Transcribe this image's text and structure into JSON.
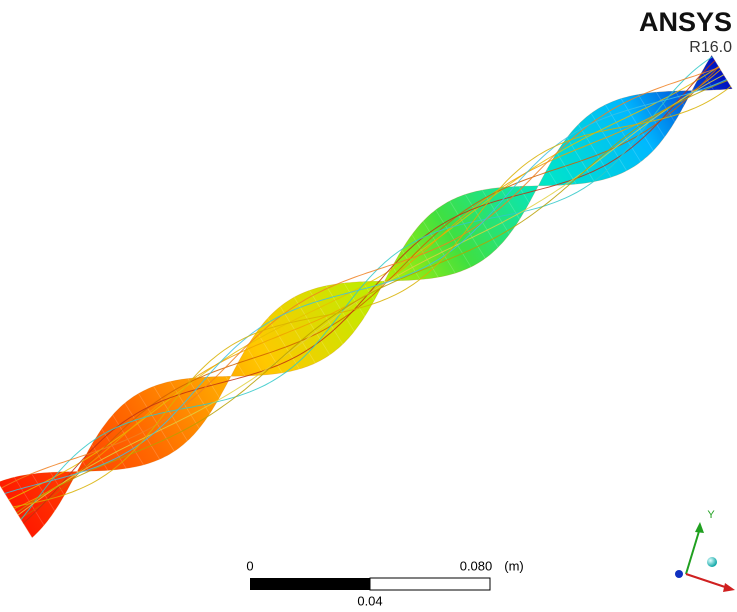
{
  "header": {
    "brand": "ANSYS",
    "version": "R16.0"
  },
  "scale_bar": {
    "start": "0",
    "end": "0.080",
    "unit": "(m)",
    "mid": "0.04"
  },
  "triad": {
    "y_axis": "Y"
  }
}
